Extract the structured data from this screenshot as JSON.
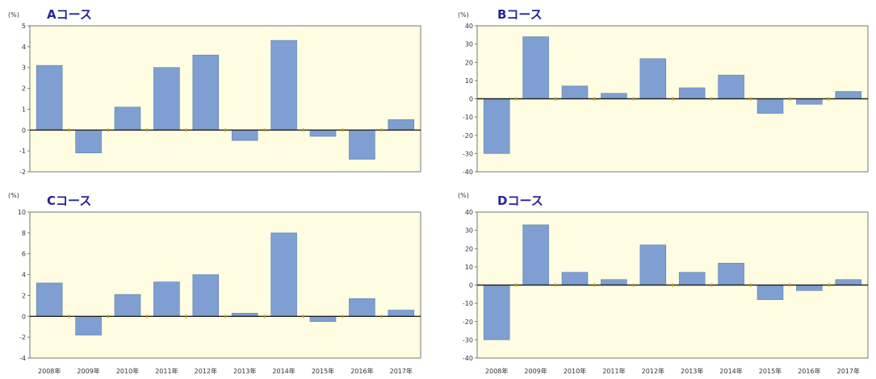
{
  "chart_data": [
    {
      "type": "bar",
      "title": "Aコース",
      "ylabel": "(%)",
      "ylim": [
        -2,
        5
      ],
      "yticks": [
        5,
        4,
        3,
        2,
        1,
        0,
        -1,
        -2
      ],
      "categories": [
        "2008年",
        "2009年",
        "2010年",
        "2011年",
        "2012年",
        "2013年",
        "2014年",
        "2015年",
        "2016年",
        "2017年"
      ],
      "show_categories": false,
      "values": [
        3.1,
        -1.1,
        1.1,
        3.0,
        3.6,
        -0.5,
        4.3,
        -0.3,
        -1.4,
        0.5
      ]
    },
    {
      "type": "bar",
      "title": "Bコース",
      "ylabel": "(%)",
      "ylim": [
        -40,
        40
      ],
      "yticks": [
        40,
        30,
        20,
        10,
        0,
        -10,
        -20,
        -30,
        -40
      ],
      "categories": [
        "2008年",
        "2009年",
        "2010年",
        "2011年",
        "2012年",
        "2013年",
        "2014年",
        "2015年",
        "2016年",
        "2017年"
      ],
      "show_categories": false,
      "values": [
        -30,
        34,
        7,
        3,
        22,
        6,
        13,
        -8,
        -3,
        4
      ]
    },
    {
      "type": "bar",
      "title": "Cコース",
      "ylabel": "(%)",
      "ylim": [
        -4,
        10
      ],
      "yticks": [
        10,
        8,
        6,
        4,
        2,
        0,
        -2,
        -4
      ],
      "categories": [
        "2008年",
        "2009年",
        "2010年",
        "2011年",
        "2012年",
        "2013年",
        "2014年",
        "2015年",
        "2016年",
        "2017年"
      ],
      "show_categories": true,
      "values": [
        3.2,
        -1.8,
        2.1,
        3.3,
        4.0,
        0.3,
        8.0,
        -0.5,
        1.7,
        0.6
      ]
    },
    {
      "type": "bar",
      "title": "Dコース",
      "ylabel": "(%)",
      "ylim": [
        -40,
        40
      ],
      "yticks": [
        40,
        30,
        20,
        10,
        0,
        -10,
        -20,
        -30,
        -40
      ],
      "categories": [
        "2008年",
        "2009年",
        "2010年",
        "2011年",
        "2012年",
        "2013年",
        "2014年",
        "2015年",
        "2016年",
        "2017年"
      ],
      "show_categories": true,
      "values": [
        -30,
        33,
        7,
        3,
        22,
        7,
        12,
        -8,
        -3,
        3
      ]
    }
  ],
  "colors": {
    "bar_fill": "#7f9fd2",
    "bar_stroke": "#5f7fb5",
    "plot_background": "#fefde1",
    "frame": "#777777",
    "zero_line": "#222222",
    "category_tick": "#c9a200",
    "title_text": "#24249a"
  }
}
